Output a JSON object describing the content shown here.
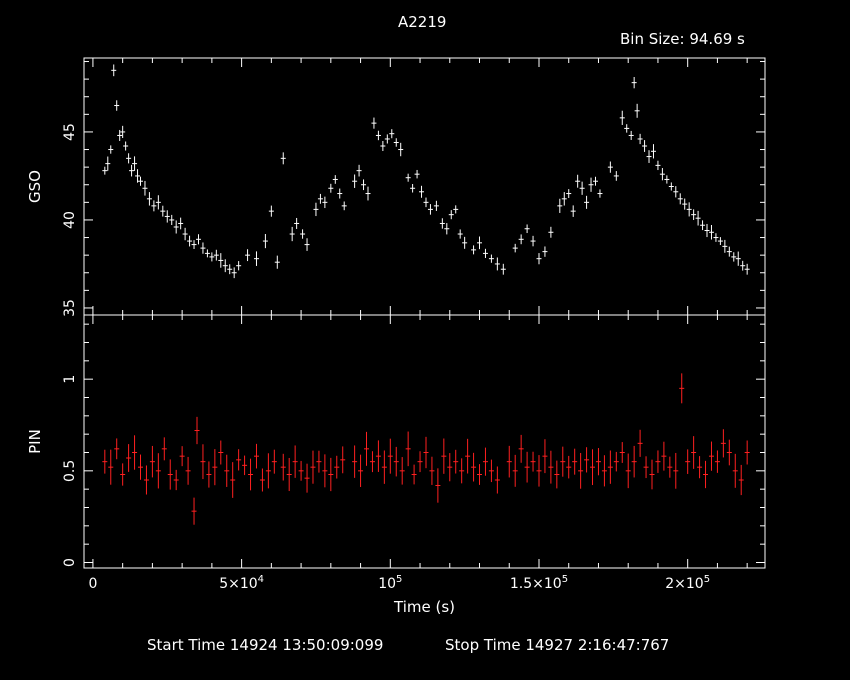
{
  "header": {
    "title": "A2219",
    "bin_size": "Bin Size: 94.69 s"
  },
  "footer": {
    "start_time": "Start Time 14924 13:50:09:099",
    "stop_time": "Stop Time 14927  2:16:47:767"
  },
  "chart_data": {
    "type": "scatter",
    "title": "A2219",
    "xlabel": "Time (s)",
    "xlim": [
      -3000,
      226000
    ],
    "x_ticks": [
      {
        "value": 0,
        "label": "0"
      },
      {
        "value": 50000,
        "label": "5×10",
        "exp": "4"
      },
      {
        "value": 100000,
        "label": "10",
        "exp": "5"
      },
      {
        "value": 150000,
        "label": "1.5×10",
        "exp": "5"
      },
      {
        "value": 200000,
        "label": "2×10",
        "exp": "5"
      }
    ],
    "panels": [
      {
        "name": "GSO",
        "ylabel": "GSO",
        "ylim": [
          34.6,
          49.2
        ],
        "y_ticks": [
          {
            "value": 35,
            "label": "35"
          },
          {
            "value": 40,
            "label": "40"
          },
          {
            "value": 45,
            "label": "45"
          }
        ],
        "color": "#ffffff",
        "points": [
          [
            4000,
            42.8
          ],
          [
            5000,
            43.2
          ],
          [
            6000,
            44.0
          ],
          [
            7000,
            48.5
          ],
          [
            8000,
            46.5
          ],
          [
            9000,
            44.8
          ],
          [
            10000,
            45.0
          ],
          [
            11000,
            44.2
          ],
          [
            12000,
            43.5
          ],
          [
            13000,
            42.8
          ],
          [
            14000,
            43.2
          ],
          [
            15000,
            42.5
          ],
          [
            16000,
            42.2
          ],
          [
            17500,
            41.8
          ],
          [
            19000,
            41.2
          ],
          [
            20500,
            40.8
          ],
          [
            22000,
            41.0
          ],
          [
            23500,
            40.5
          ],
          [
            25000,
            40.2
          ],
          [
            26500,
            40.0
          ],
          [
            28000,
            39.6
          ],
          [
            29500,
            39.8
          ],
          [
            31000,
            39.2
          ],
          [
            32500,
            38.8
          ],
          [
            34000,
            38.6
          ],
          [
            35500,
            38.9
          ],
          [
            37000,
            38.4
          ],
          [
            38500,
            38.1
          ],
          [
            40000,
            37.9
          ],
          [
            41500,
            38.0
          ],
          [
            43000,
            37.7
          ],
          [
            44500,
            37.4
          ],
          [
            46000,
            37.2
          ],
          [
            47500,
            37.0
          ],
          [
            49000,
            37.4
          ],
          [
            52000,
            38.0
          ],
          [
            55000,
            37.8
          ],
          [
            58000,
            38.8
          ],
          [
            60000,
            40.5
          ],
          [
            62000,
            37.6
          ],
          [
            64000,
            43.5
          ],
          [
            67000,
            39.2
          ],
          [
            68500,
            39.8
          ],
          [
            70500,
            39.2
          ],
          [
            72000,
            38.6
          ],
          [
            75000,
            40.6
          ],
          [
            76500,
            41.2
          ],
          [
            78000,
            41.0
          ],
          [
            80000,
            41.8
          ],
          [
            81500,
            42.3
          ],
          [
            83000,
            41.5
          ],
          [
            84500,
            40.8
          ],
          [
            88000,
            42.2
          ],
          [
            89500,
            42.8
          ],
          [
            91000,
            42.0
          ],
          [
            92500,
            41.5
          ],
          [
            94500,
            45.5
          ],
          [
            96000,
            44.8
          ],
          [
            97500,
            44.2
          ],
          [
            99000,
            44.6
          ],
          [
            100500,
            44.9
          ],
          [
            102000,
            44.4
          ],
          [
            103500,
            44.0
          ],
          [
            106000,
            42.4
          ],
          [
            107500,
            41.8
          ],
          [
            109000,
            42.6
          ],
          [
            110500,
            41.6
          ],
          [
            112000,
            41.0
          ],
          [
            113500,
            40.6
          ],
          [
            115500,
            40.8
          ],
          [
            117500,
            39.8
          ],
          [
            119000,
            39.5
          ],
          [
            120500,
            40.3
          ],
          [
            122000,
            40.6
          ],
          [
            123500,
            39.2
          ],
          [
            125000,
            38.7
          ],
          [
            128000,
            38.3
          ],
          [
            130000,
            38.7
          ],
          [
            132000,
            38.1
          ],
          [
            134000,
            37.8
          ],
          [
            136000,
            37.5
          ],
          [
            138000,
            37.2
          ],
          [
            142000,
            38.4
          ],
          [
            144000,
            38.9
          ],
          [
            146000,
            39.5
          ],
          [
            148000,
            38.8
          ],
          [
            150000,
            37.8
          ],
          [
            152000,
            38.2
          ],
          [
            154000,
            39.3
          ],
          [
            157000,
            40.8
          ],
          [
            158500,
            41.2
          ],
          [
            160000,
            41.5
          ],
          [
            161500,
            40.5
          ],
          [
            163000,
            42.2
          ],
          [
            164500,
            41.8
          ],
          [
            166000,
            41.0
          ],
          [
            167500,
            42.0
          ],
          [
            169000,
            42.2
          ],
          [
            170500,
            41.5
          ],
          [
            174000,
            43.0
          ],
          [
            176000,
            42.5
          ],
          [
            178000,
            45.8
          ],
          [
            179500,
            45.2
          ],
          [
            181000,
            44.8
          ],
          [
            182000,
            47.8
          ],
          [
            183000,
            46.2
          ],
          [
            184000,
            44.6
          ],
          [
            185500,
            44.2
          ],
          [
            187000,
            43.6
          ],
          [
            188500,
            43.9
          ],
          [
            190000,
            43.1
          ],
          [
            191500,
            42.6
          ],
          [
            193000,
            42.3
          ],
          [
            194500,
            41.9
          ],
          [
            196000,
            41.6
          ],
          [
            197500,
            41.2
          ],
          [
            199000,
            40.9
          ],
          [
            200500,
            40.6
          ],
          [
            202000,
            40.3
          ],
          [
            203500,
            40.1
          ],
          [
            205000,
            39.7
          ],
          [
            206500,
            39.4
          ],
          [
            208000,
            39.3
          ],
          [
            209500,
            39.0
          ],
          [
            211000,
            38.8
          ],
          [
            212500,
            38.5
          ],
          [
            214000,
            38.2
          ],
          [
            215500,
            37.9
          ],
          [
            217000,
            37.8
          ],
          [
            218500,
            37.4
          ],
          [
            220000,
            37.2
          ]
        ]
      },
      {
        "name": "PIN",
        "ylabel": "PIN",
        "ylim": [
          -0.03,
          1.35
        ],
        "y_ticks": [
          {
            "value": 0,
            "label": "0"
          },
          {
            "value": 0.5,
            "label": "0.5"
          },
          {
            "value": 1,
            "label": "1"
          }
        ],
        "color": "#ff2020",
        "points": [
          [
            4000,
            0.55
          ],
          [
            6000,
            0.52
          ],
          [
            8000,
            0.62
          ],
          [
            10000,
            0.48
          ],
          [
            12000,
            0.57
          ],
          [
            14000,
            0.6
          ],
          [
            16000,
            0.52
          ],
          [
            18000,
            0.45
          ],
          [
            20000,
            0.55
          ],
          [
            22000,
            0.5
          ],
          [
            24000,
            0.62
          ],
          [
            26000,
            0.48
          ],
          [
            28000,
            0.45
          ],
          [
            30000,
            0.58
          ],
          [
            32000,
            0.5
          ],
          [
            34000,
            0.28
          ],
          [
            35000,
            0.72
          ],
          [
            37000,
            0.55
          ],
          [
            39000,
            0.48
          ],
          [
            41000,
            0.52
          ],
          [
            43000,
            0.6
          ],
          [
            45000,
            0.5
          ],
          [
            47000,
            0.45
          ],
          [
            49000,
            0.56
          ],
          [
            51000,
            0.53
          ],
          [
            53000,
            0.48
          ],
          [
            55000,
            0.58
          ],
          [
            57000,
            0.45
          ],
          [
            59000,
            0.5
          ],
          [
            61000,
            0.55
          ],
          [
            64000,
            0.52
          ],
          [
            66000,
            0.48
          ],
          [
            68000,
            0.55
          ],
          [
            70000,
            0.5
          ],
          [
            72000,
            0.46
          ],
          [
            74000,
            0.52
          ],
          [
            76000,
            0.55
          ],
          [
            78000,
            0.5
          ],
          [
            80000,
            0.48
          ],
          [
            82000,
            0.52
          ],
          [
            84000,
            0.56
          ],
          [
            88000,
            0.55
          ],
          [
            90000,
            0.5
          ],
          [
            92000,
            0.62
          ],
          [
            94000,
            0.55
          ],
          [
            96000,
            0.58
          ],
          [
            98000,
            0.52
          ],
          [
            100000,
            0.58
          ],
          [
            102000,
            0.55
          ],
          [
            104000,
            0.5
          ],
          [
            106000,
            0.62
          ],
          [
            108000,
            0.48
          ],
          [
            110000,
            0.55
          ],
          [
            112000,
            0.6
          ],
          [
            114000,
            0.5
          ],
          [
            116000,
            0.42
          ],
          [
            118000,
            0.58
          ],
          [
            120000,
            0.52
          ],
          [
            122000,
            0.55
          ],
          [
            124000,
            0.5
          ],
          [
            126000,
            0.58
          ],
          [
            128000,
            0.52
          ],
          [
            130000,
            0.48
          ],
          [
            132000,
            0.55
          ],
          [
            134000,
            0.5
          ],
          [
            136000,
            0.45
          ],
          [
            140000,
            0.55
          ],
          [
            142000,
            0.5
          ],
          [
            144000,
            0.62
          ],
          [
            146000,
            0.52
          ],
          [
            148000,
            0.55
          ],
          [
            150000,
            0.5
          ],
          [
            152000,
            0.58
          ],
          [
            154000,
            0.52
          ],
          [
            156000,
            0.48
          ],
          [
            158000,
            0.55
          ],
          [
            160000,
            0.52
          ],
          [
            162000,
            0.55
          ],
          [
            164000,
            0.5
          ],
          [
            166000,
            0.56
          ],
          [
            168000,
            0.52
          ],
          [
            170000,
            0.55
          ],
          [
            172000,
            0.5
          ],
          [
            174000,
            0.52
          ],
          [
            176000,
            0.55
          ],
          [
            178000,
            0.6
          ],
          [
            180000,
            0.5
          ],
          [
            182000,
            0.55
          ],
          [
            184000,
            0.65
          ],
          [
            186000,
            0.52
          ],
          [
            188000,
            0.48
          ],
          [
            190000,
            0.55
          ],
          [
            192000,
            0.58
          ],
          [
            194000,
            0.52
          ],
          [
            196000,
            0.5
          ],
          [
            198000,
            0.95
          ],
          [
            200000,
            0.55
          ],
          [
            202000,
            0.6
          ],
          [
            204000,
            0.52
          ],
          [
            206000,
            0.48
          ],
          [
            208000,
            0.58
          ],
          [
            210000,
            0.55
          ],
          [
            212000,
            0.65
          ],
          [
            214000,
            0.6
          ],
          [
            216000,
            0.5
          ],
          [
            218000,
            0.45
          ],
          [
            220000,
            0.6
          ]
        ]
      }
    ]
  }
}
